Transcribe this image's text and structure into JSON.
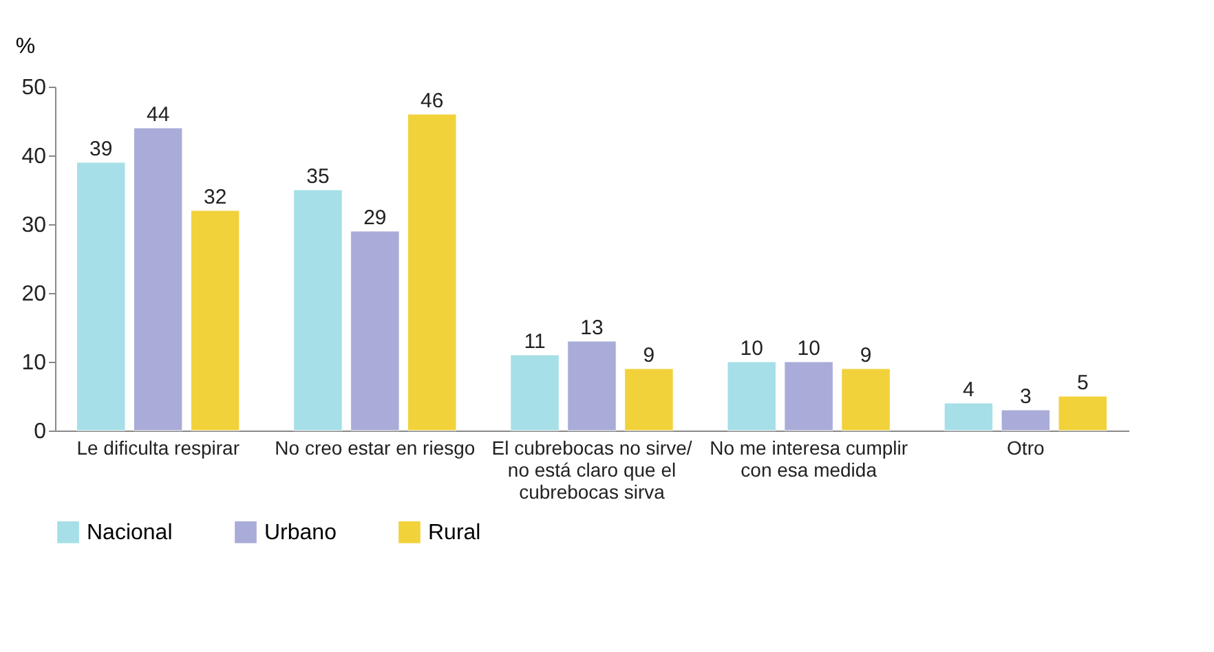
{
  "chart_data": {
    "type": "bar",
    "ylabel": "%",
    "categories": [
      "Le dificulta respirar",
      "No creo estar en riesgo",
      "El cubrebocas no sirve/ no está claro que el cubrebocas sirva",
      "No me interesa cumplir con esa medida",
      "Otro"
    ],
    "series": [
      {
        "name": "Nacional",
        "color": "#a6dfe8",
        "values": [
          39,
          35,
          11,
          10,
          4
        ]
      },
      {
        "name": "Urbano",
        "color": "#a9acd8",
        "values": [
          44,
          29,
          13,
          10,
          3
        ]
      },
      {
        "name": "Rural",
        "color": "#f2d23a",
        "values": [
          32,
          46,
          9,
          9,
          5
        ]
      }
    ],
    "ylim": [
      0,
      50
    ],
    "yticks": [
      0,
      10,
      20,
      30,
      40,
      50
    ],
    "grid": false,
    "legend": "bottom",
    "data_labels": true
  }
}
